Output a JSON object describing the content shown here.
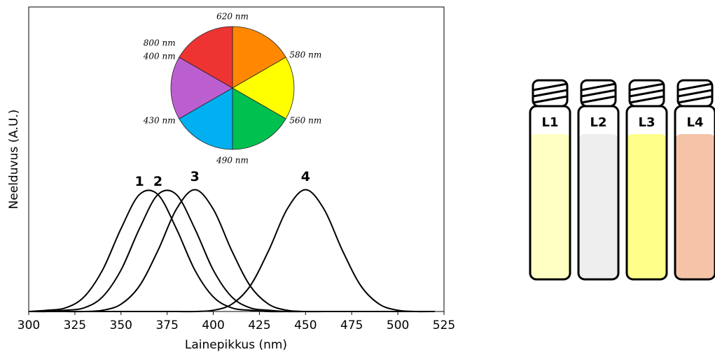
{
  "chart_data": {
    "type": "line",
    "x_label": "Lainepikkus (nm)",
    "y_label": "Neelduvus (A.U.)",
    "x": [
      300,
      310,
      320,
      330,
      340,
      350,
      360,
      370,
      380,
      390,
      400,
      410,
      420,
      430,
      440,
      450,
      460,
      470,
      480,
      490,
      500,
      510,
      520
    ],
    "series": [
      {
        "name": "1",
        "color": "#000000",
        "values": [
          0,
          0.01,
          0.03,
          0.12,
          0.34,
          0.68,
          0.96,
          0.96,
          0.68,
          0.34,
          0.12,
          0.03,
          0.01,
          0,
          0,
          0,
          0,
          0,
          0,
          0,
          0,
          0,
          0
        ]
      },
      {
        "name": "2",
        "color": "#000000",
        "values": [
          0,
          0,
          0.01,
          0.03,
          0.12,
          0.34,
          0.68,
          0.96,
          0.96,
          0.68,
          0.34,
          0.12,
          0.03,
          0.01,
          0,
          0,
          0,
          0,
          0,
          0,
          0,
          0,
          0
        ]
      },
      {
        "name": "3",
        "color": "#000000",
        "values": [
          0,
          0,
          0,
          0,
          0.01,
          0.06,
          0.21,
          0.5,
          0.84,
          1,
          0.84,
          0.5,
          0.21,
          0.06,
          0.01,
          0,
          0,
          0,
          0,
          0,
          0,
          0,
          0
        ]
      },
      {
        "name": "4",
        "color": "#000000",
        "values": [
          0,
          0,
          0,
          0,
          0,
          0,
          0,
          0,
          0,
          0,
          0.01,
          0.06,
          0.21,
          0.5,
          0.84,
          1,
          0.84,
          0.5,
          0.21,
          0.06,
          0.01,
          0,
          0
        ]
      }
    ],
    "xlim": [
      300,
      525
    ],
    "xticks": [
      300,
      325,
      350,
      375,
      400,
      425,
      450,
      475,
      500,
      525
    ],
    "ylim": [
      0,
      2.5
    ]
  },
  "color_wheel": {
    "sector_colors": [
      "#ff8800",
      "#ffff00",
      "#00c050",
      "#00b0f0",
      "#bb5fd0",
      "#ee3333"
    ],
    "boundary_labels": [
      "620 nm",
      "580 nm",
      "560 nm",
      "490 nm",
      "430 nm",
      "400 nm",
      "800 nm"
    ]
  },
  "vials": [
    {
      "label": "L1",
      "color": "#ffffc4"
    },
    {
      "label": "L2",
      "color": "#eeeeee"
    },
    {
      "label": "L3",
      "color": "#ffff8a"
    },
    {
      "label": "L4",
      "color": "#f5c4a8"
    }
  ]
}
